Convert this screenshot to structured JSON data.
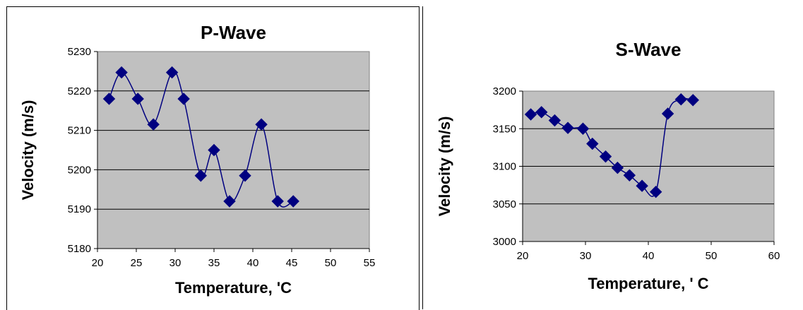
{
  "chart_data": [
    {
      "type": "line",
      "title": "P-Wave",
      "xlabel": "Temperature, 'C",
      "ylabel": "Velocity (m/s)",
      "xlim": [
        20,
        55
      ],
      "ylim": [
        5180,
        5230
      ],
      "x_ticks": [
        "20",
        "25",
        "30",
        "35",
        "40",
        "45",
        "50",
        "55"
      ],
      "y_ticks": [
        "5180",
        "5190",
        "5200",
        "5210",
        "5220",
        "5230"
      ],
      "grid": "horizontal",
      "plot_background": "#c0c0c0",
      "series": [
        {
          "color": "#000080",
          "marker": "diamond",
          "x": [
            21.5,
            23.1,
            25.2,
            27.2,
            29.6,
            31.1,
            33.3,
            35.0,
            37.0,
            39.0,
            41.1,
            43.2,
            45.2
          ],
          "y": [
            5218,
            5224.7,
            5218,
            5211.5,
            5224.7,
            5218,
            5198.5,
            5205,
            5192,
            5198.5,
            5211.5,
            5192,
            5192
          ]
        }
      ]
    },
    {
      "type": "line",
      "title": "S-Wave",
      "xlabel": "Temperature, ' C",
      "ylabel": "Velocity (m/s)",
      "xlim": [
        20,
        60
      ],
      "ylim": [
        3000,
        3200
      ],
      "x_ticks": [
        "20",
        "30",
        "40",
        "50",
        "60"
      ],
      "y_ticks": [
        "3000",
        "3050",
        "3100",
        "3150",
        "3200"
      ],
      "grid": "horizontal",
      "plot_background": "#c0c0c0",
      "series": [
        {
          "color": "#000080",
          "marker": "diamond",
          "x": [
            21.3,
            23.0,
            25.1,
            27.2,
            29.6,
            31.1,
            33.2,
            35.1,
            37.0,
            39.0,
            41.2,
            43.1,
            45.2,
            47.1
          ],
          "y": [
            3169,
            3172,
            3161,
            3151,
            3150,
            3130,
            3113,
            3098,
            3088,
            3074,
            3066,
            3170,
            3189,
            3188
          ]
        }
      ]
    }
  ]
}
